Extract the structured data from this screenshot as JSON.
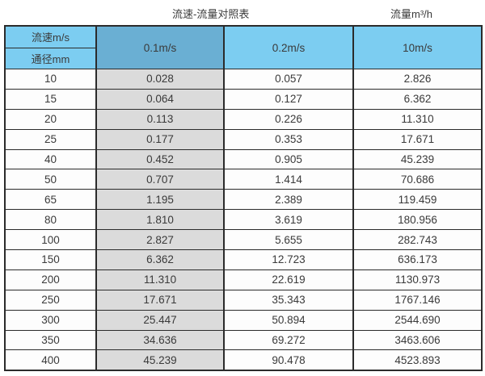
{
  "titles": {
    "left": "流速-流量对照表",
    "right": "流量m³/h"
  },
  "chart_data": {
    "type": "table",
    "title": "流速-流量对照表",
    "flow_unit_label": "流量m³/h",
    "corner_top": "流速m/s",
    "corner_bottom": "通径mm",
    "velocity_headers": [
      "0.1m/s",
      "0.2m/s",
      "10m/s"
    ],
    "diameter_unit": "mm",
    "rows": [
      {
        "diameter": "10",
        "values": [
          "0.028",
          "0.057",
          "2.826"
        ]
      },
      {
        "diameter": "15",
        "values": [
          "0.064",
          "0.127",
          "6.362"
        ]
      },
      {
        "diameter": "20",
        "values": [
          "0.113",
          "0.226",
          "11.310"
        ]
      },
      {
        "diameter": "25",
        "values": [
          "0.177",
          "0.353",
          "17.671"
        ]
      },
      {
        "diameter": "40",
        "values": [
          "0.452",
          "0.905",
          "45.239"
        ]
      },
      {
        "diameter": "50",
        "values": [
          "0.707",
          "1.414",
          "70.686"
        ]
      },
      {
        "diameter": "65",
        "values": [
          "1.195",
          "2.389",
          "119.459"
        ]
      },
      {
        "diameter": "80",
        "values": [
          "1.810",
          "3.619",
          "180.956"
        ]
      },
      {
        "diameter": "100",
        "values": [
          "2.827",
          "5.655",
          "282.743"
        ]
      },
      {
        "diameter": "150",
        "values": [
          "6.362",
          "12.723",
          "636.173"
        ]
      },
      {
        "diameter": "200",
        "values": [
          "11.310",
          "22.619",
          "1130.973"
        ]
      },
      {
        "diameter": "250",
        "values": [
          "17.671",
          "35.343",
          "1767.146"
        ]
      },
      {
        "diameter": "300",
        "values": [
          "25.447",
          "50.894",
          "2544.690"
        ]
      },
      {
        "diameter": "350",
        "values": [
          "34.636",
          "69.272",
          "3463.606"
        ]
      },
      {
        "diameter": "400",
        "values": [
          "45.239",
          "90.478",
          "4523.893"
        ]
      }
    ]
  },
  "colors": {
    "header_blue": "#7CCDF1",
    "highlight_header_blue": "#6AAFD3",
    "shaded_column_gray": "#DBDBDB",
    "border": "#2b2b2b",
    "text": "#3a3a3a",
    "background": "#ffffff"
  }
}
